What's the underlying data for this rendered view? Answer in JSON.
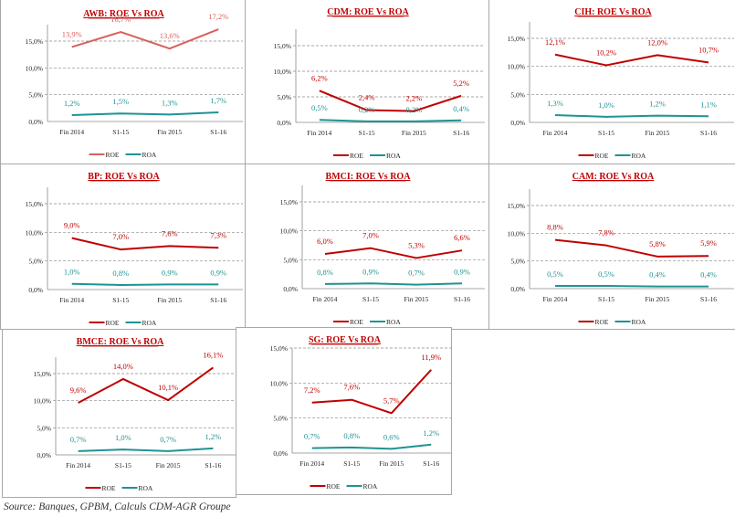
{
  "colors": {
    "roe": "#c00000",
    "roe_awb": "#d9605c",
    "roa": "#1f9393",
    "grid": "#8a8a8a",
    "axis": "#8a8a8a",
    "text": "#222222"
  },
  "source": "Source: Banques, GPBM, Calculs CDM-AGR Groupe",
  "chart_data": [
    {
      "id": "awb",
      "type": "line",
      "title": "AWB: ROE Vs ROA",
      "categories": [
        "Fin 2014",
        "S1-15",
        "Fin 2015",
        "S1-16"
      ],
      "ylim": [
        0,
        15
      ],
      "yticks": [
        "0,0%",
        "5,0%",
        "10,0%",
        "15,0%"
      ],
      "grid": true,
      "legend": "bottom",
      "series": [
        {
          "name": "ROE",
          "values": [
            13.9,
            16.7,
            13.6,
            17.2
          ],
          "labels": [
            "13,9%",
            "16,7%",
            "13,6%",
            "17,2%"
          ]
        },
        {
          "name": "ROA",
          "values": [
            1.2,
            1.5,
            1.3,
            1.7
          ],
          "labels": [
            "1,2%",
            "1,5%",
            "1,3%",
            "1,7%"
          ]
        }
      ]
    },
    {
      "id": "cdm",
      "type": "line",
      "title": "CDM: ROE Vs ROA",
      "categories": [
        "Fin 2014",
        "S1-15",
        "Fin 2015",
        "S1-16"
      ],
      "ylim": [
        0,
        15
      ],
      "yticks": [
        "0,0%",
        "5,0%",
        "10,0%",
        "15,0%"
      ],
      "grid": true,
      "legend": "bottom",
      "series": [
        {
          "name": "ROE",
          "values": [
            6.2,
            2.4,
            2.2,
            5.2
          ],
          "labels": [
            "6,2%",
            "2,4%",
            "2,2%",
            "5,2%"
          ]
        },
        {
          "name": "ROA",
          "values": [
            0.5,
            0.2,
            0.2,
            0.4
          ],
          "labels": [
            "0,5%",
            "0,2%",
            "0,2%",
            "0,4%"
          ]
        }
      ]
    },
    {
      "id": "cih",
      "type": "line",
      "title": "CIH: ROE Vs ROA",
      "categories": [
        "Fin 2014",
        "S1-15",
        "Fin 2015",
        "S1-16"
      ],
      "ylim": [
        0,
        15
      ],
      "yticks": [
        "0,0%",
        "5,0%",
        "10,0%",
        "15,0%"
      ],
      "grid": true,
      "legend": "bottom",
      "series": [
        {
          "name": "ROE",
          "values": [
            12.1,
            10.2,
            12.0,
            10.7
          ],
          "labels": [
            "12,1%",
            "10,2%",
            "12,0%",
            "10,7%"
          ]
        },
        {
          "name": "ROA",
          "values": [
            1.3,
            1.0,
            1.2,
            1.1
          ],
          "labels": [
            "1,3%",
            "1,0%",
            "1,2%",
            "1,1%"
          ]
        }
      ]
    },
    {
      "id": "bp",
      "type": "line",
      "title": "BP: ROE Vs ROA",
      "categories": [
        "Fin 2014",
        "S1-15",
        "Fin 2015",
        "S1-16"
      ],
      "ylim": [
        0,
        15
      ],
      "yticks": [
        "0,0%",
        "5,0%",
        "10,0%",
        "15,0%"
      ],
      "grid": true,
      "legend": "bottom",
      "series": [
        {
          "name": "ROE",
          "values": [
            9.0,
            7.0,
            7.6,
            7.3
          ],
          "labels": [
            "9,0%",
            "7,0%",
            "7,6%",
            "7,3%"
          ]
        },
        {
          "name": "ROA",
          "values": [
            1.0,
            0.8,
            0.9,
            0.9
          ],
          "labels": [
            "1,0%",
            "0,8%",
            "0,9%",
            "0,9%"
          ]
        }
      ]
    },
    {
      "id": "bmci",
      "type": "line",
      "title": "BMCI: ROE Vs ROA",
      "categories": [
        "Fin 2014",
        "S1-15",
        "Fin 2015",
        "S1-16"
      ],
      "ylim": [
        0,
        15
      ],
      "yticks": [
        "0,0%",
        "5,0%",
        "10,0%",
        "15,0%"
      ],
      "grid": true,
      "legend": "bottom",
      "series": [
        {
          "name": "ROE",
          "values": [
            6.0,
            7.0,
            5.3,
            6.6
          ],
          "labels": [
            "6,0%",
            "7,0%",
            "5,3%",
            "6,6%"
          ]
        },
        {
          "name": "ROA",
          "values": [
            0.8,
            0.9,
            0.7,
            0.9
          ],
          "labels": [
            "0,8%",
            "0,9%",
            "0,7%",
            "0,9%"
          ]
        }
      ]
    },
    {
      "id": "cam",
      "type": "line",
      "title": "CAM: ROE Vs ROA",
      "categories": [
        "Fin 2014",
        "S1-15",
        "Fin 2015",
        "S1-16"
      ],
      "ylim": [
        0,
        15
      ],
      "yticks": [
        "0,0%",
        "5,0%",
        "10,0%",
        "15,0%"
      ],
      "grid": true,
      "legend": "bottom",
      "series": [
        {
          "name": "ROE",
          "values": [
            8.8,
            7.8,
            5.8,
            5.9
          ],
          "labels": [
            "8,8%",
            "7,8%",
            "5,8%",
            "5,9%"
          ]
        },
        {
          "name": "ROA",
          "values": [
            0.5,
            0.5,
            0.4,
            0.4
          ],
          "labels": [
            "0,5%",
            "0,5%",
            "0,4%",
            "0,4%"
          ]
        }
      ]
    },
    {
      "id": "bmce",
      "type": "line",
      "title": "BMCE: ROE Vs ROA",
      "categories": [
        "Fin 2014",
        "S1-15",
        "Fin 2015",
        "S1-16"
      ],
      "ylim": [
        0,
        15
      ],
      "yticks": [
        "0,0%",
        "5,0%",
        "10,0%",
        "15,0%"
      ],
      "grid": true,
      "legend": "bottom",
      "series": [
        {
          "name": "ROE",
          "values": [
            9.6,
            14.0,
            10.1,
            16.1
          ],
          "labels": [
            "9,6%",
            "14,0%",
            "10,1%",
            "16,1%"
          ]
        },
        {
          "name": "ROA",
          "values": [
            0.7,
            1.0,
            0.7,
            1.2
          ],
          "labels": [
            "0,7%",
            "1,0%",
            "0,7%",
            "1,2%"
          ]
        }
      ]
    },
    {
      "id": "sg",
      "type": "line",
      "title": "SG: ROE Vs ROA",
      "categories": [
        "Fin 2014",
        "S1-15",
        "Fin 2015",
        "S1-16"
      ],
      "ylim": [
        0,
        15
      ],
      "yticks": [
        "0,0%",
        "5,0%",
        "10,0%",
        "15,0%"
      ],
      "grid": true,
      "legend": "bottom",
      "series": [
        {
          "name": "ROE",
          "values": [
            7.2,
            7.6,
            5.7,
            11.9
          ],
          "labels": [
            "7,2%",
            "7,6%",
            "5,7%",
            "11,9%"
          ]
        },
        {
          "name": "ROA",
          "values": [
            0.7,
            0.8,
            0.6,
            1.2
          ],
          "labels": [
            "0,7%",
            "0,8%",
            "0,6%",
            "1,2%"
          ]
        }
      ]
    }
  ]
}
